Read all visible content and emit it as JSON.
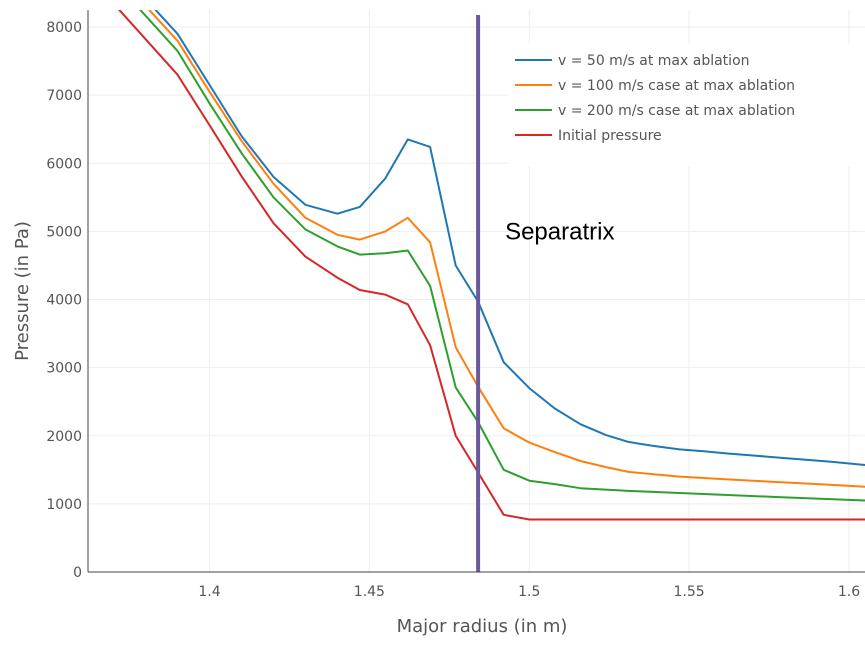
{
  "chart_data": {
    "type": "line",
    "title": "",
    "xlabel": "Major radius (in m)",
    "ylabel": "Pressure (in Pa)",
    "xlim": [
      1.362,
      1.605
    ],
    "ylim": [
      0,
      8250
    ],
    "xticks": [
      1.4,
      1.45,
      1.5,
      1.55,
      1.6
    ],
    "xtick_labels": [
      "1.4",
      "1.45",
      "1.5",
      "1.55",
      "1.6"
    ],
    "yticks": [
      0,
      1000,
      2000,
      3000,
      4000,
      5000,
      6000,
      7000,
      8000
    ],
    "ytick_labels": [
      "0",
      "1000",
      "2000",
      "3000",
      "4000",
      "5000",
      "6000",
      "7000",
      "8000"
    ],
    "grid": true,
    "legend_position": "top-right",
    "series": [
      {
        "name": "v = 50 m/s at max ablation",
        "color": "#1f77b4",
        "x": [
          1.3,
          1.39,
          1.4,
          1.41,
          1.42,
          1.43,
          1.44,
          1.447,
          1.455,
          1.462,
          1.469,
          1.477,
          1.484,
          1.492,
          1.5,
          1.508,
          1.516,
          1.524,
          1.531,
          1.539,
          1.547,
          1.555,
          1.562,
          1.57,
          1.578,
          1.586,
          1.594,
          1.605
        ],
        "y": [
          12500,
          7900,
          7150,
          6400,
          5800,
          5390,
          5260,
          5360,
          5780,
          6350,
          6240,
          4500,
          3970,
          3080,
          2700,
          2400,
          2170,
          2010,
          1910,
          1850,
          1800,
          1770,
          1740,
          1710,
          1680,
          1650,
          1620,
          1570
        ]
      },
      {
        "name": "v = 100 m/s case at max ablation",
        "color": "#ff7f0e",
        "x": [
          1.3,
          1.39,
          1.4,
          1.41,
          1.42,
          1.43,
          1.44,
          1.447,
          1.455,
          1.462,
          1.469,
          1.477,
          1.484,
          1.492,
          1.5,
          1.508,
          1.516,
          1.524,
          1.531,
          1.547,
          1.562,
          1.578,
          1.594,
          1.605
        ],
        "y": [
          12400,
          7800,
          7050,
          6330,
          5700,
          5200,
          4950,
          4880,
          5000,
          5200,
          4840,
          3300,
          2720,
          2110,
          1900,
          1760,
          1630,
          1540,
          1470,
          1400,
          1360,
          1320,
          1280,
          1250
        ]
      },
      {
        "name": "v = 200 m/s case at max ablation",
        "color": "#2ca02c",
        "x": [
          1.3,
          1.39,
          1.4,
          1.41,
          1.42,
          1.43,
          1.44,
          1.447,
          1.455,
          1.462,
          1.469,
          1.477,
          1.484,
          1.492,
          1.5,
          1.508,
          1.516,
          1.531,
          1.547,
          1.562,
          1.578,
          1.594,
          1.605
        ],
        "y": [
          12300,
          7650,
          6880,
          6150,
          5500,
          5030,
          4780,
          4660,
          4680,
          4720,
          4200,
          2710,
          2200,
          1500,
          1340,
          1290,
          1230,
          1190,
          1160,
          1130,
          1100,
          1070,
          1050
        ]
      },
      {
        "name": "Initial pressure",
        "color": "#d62728",
        "x": [
          1.3,
          1.39,
          1.4,
          1.41,
          1.42,
          1.43,
          1.44,
          1.447,
          1.455,
          1.462,
          1.469,
          1.477,
          1.484,
          1.492,
          1.5,
          1.51,
          1.54,
          1.57,
          1.605
        ],
        "y": [
          12000,
          7300,
          6560,
          5810,
          5120,
          4630,
          4320,
          4140,
          4070,
          3930,
          3330,
          2000,
          1460,
          840,
          770,
          770,
          770,
          770,
          770
        ]
      }
    ],
    "vertical_line": {
      "x": 1.484,
      "color": "#6a5a9c"
    },
    "annotations": [
      {
        "text": "Separatrix",
        "x": 1.489,
        "y": 5000
      }
    ]
  }
}
